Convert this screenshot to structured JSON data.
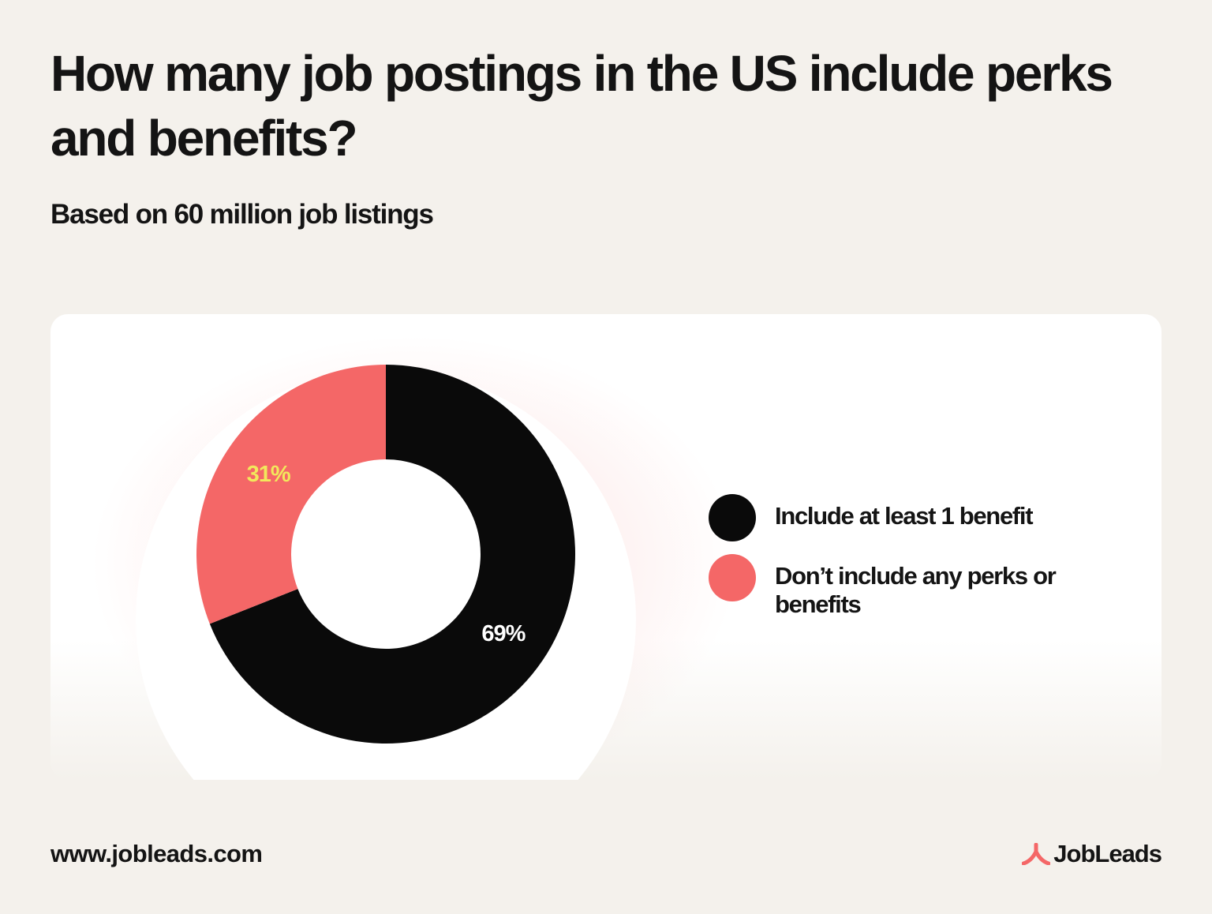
{
  "header": {
    "title": "How many job postings in the US include perks and benefits?",
    "subtitle": "Based on 60 million job listings"
  },
  "chart_data": {
    "type": "pie",
    "variant": "donut",
    "title": "How many job postings in the US include perks and benefits?",
    "subtitle": "Based on 60 million job listings",
    "series": [
      {
        "name": "Include at least 1 benefit",
        "value": 69,
        "label": "69%",
        "color": "#0a0a0a",
        "label_color": "#ffffff"
      },
      {
        "name": "Don’t include any perks or benefits",
        "value": 31,
        "label": "31%",
        "color": "#f46767",
        "label_color": "#f2e85c"
      }
    ],
    "unit": "%",
    "start_angle": "12 o'clock",
    "direction": "clockwise",
    "legend_position": "right"
  },
  "footer": {
    "url": "www.jobleads.com",
    "brand": "JobLeads",
    "brand_icon": "jobleads-logo-icon",
    "brand_color": "#f46767"
  }
}
